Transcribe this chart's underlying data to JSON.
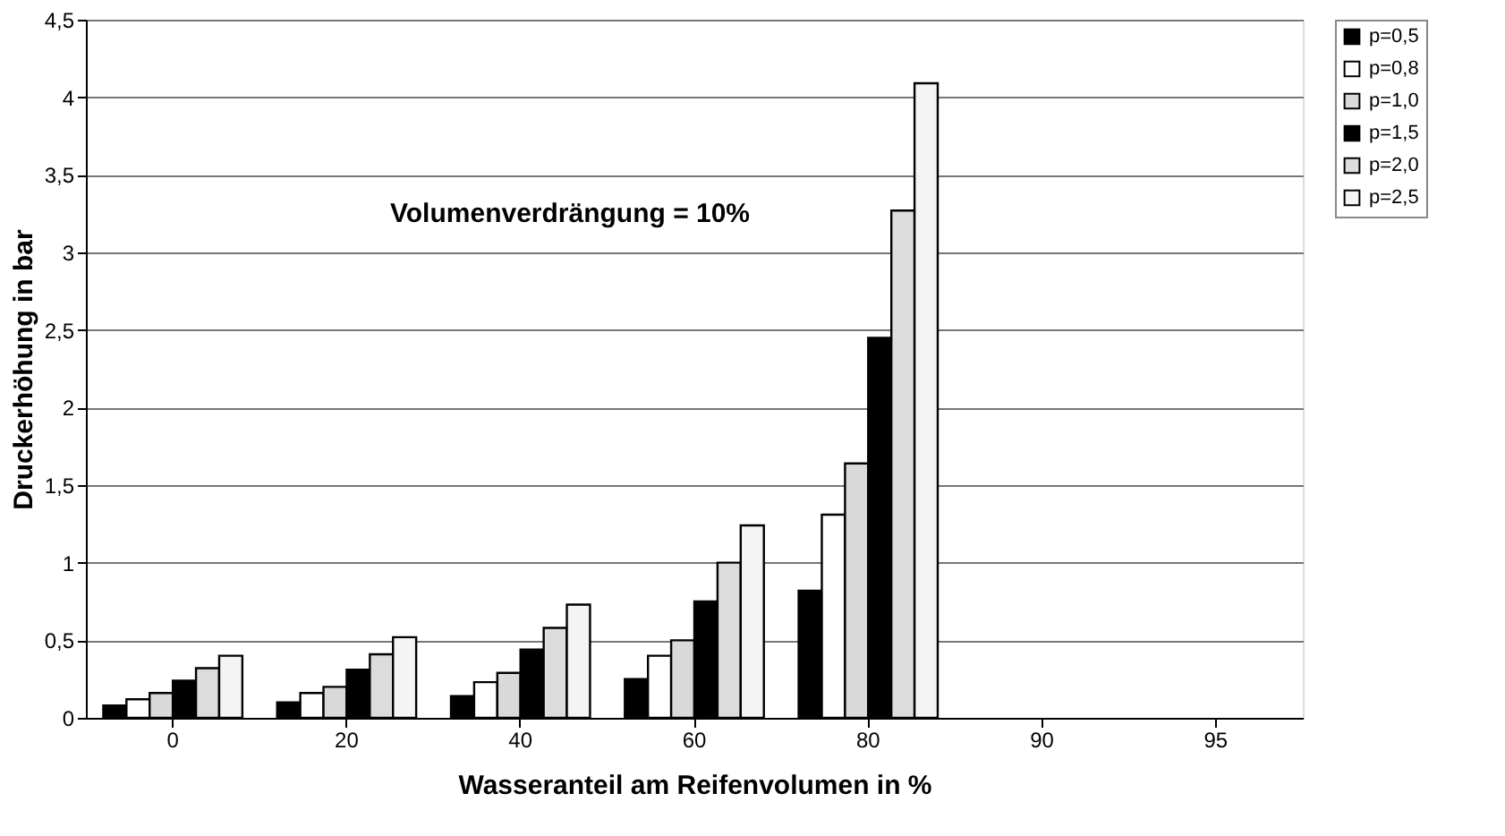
{
  "chart_data": {
    "type": "bar",
    "xlabel": "Wasseranteil am Reifenvolumen in %",
    "ylabel": "Druckerhöhung in bar",
    "categories": [
      "0",
      "20",
      "40",
      "60",
      "80",
      "90",
      "95"
    ],
    "series": [
      {
        "name": "p=0,5",
        "color": "#000000",
        "values": [
          0.08,
          0.1,
          0.14,
          0.25,
          0.82,
          null,
          null
        ]
      },
      {
        "name": "p=0,8",
        "color": "#ffffff",
        "values": [
          0.12,
          0.16,
          0.23,
          0.4,
          1.31,
          null,
          null
        ]
      },
      {
        "name": "p=1,0",
        "color": "#d9d9d9",
        "values": [
          0.16,
          0.2,
          0.29,
          0.5,
          1.64,
          null,
          null
        ]
      },
      {
        "name": "p=1,5",
        "color": "#000000",
        "values": [
          0.24,
          0.31,
          0.44,
          0.75,
          2.45,
          null,
          null
        ]
      },
      {
        "name": "p=2,0",
        "color": "#dcdcdc",
        "values": [
          0.32,
          0.41,
          0.58,
          1.0,
          3.27,
          null,
          null
        ]
      },
      {
        "name": "p=2,5",
        "color": "#f4f4f4",
        "values": [
          0.4,
          0.52,
          0.73,
          1.24,
          4.09,
          null,
          null
        ]
      }
    ],
    "ylim": [
      0,
      4.5
    ],
    "yticks": [
      {
        "value": 0,
        "label": "0"
      },
      {
        "value": 0.5,
        "label": "0,5"
      },
      {
        "value": 1,
        "label": "1"
      },
      {
        "value": 1.5,
        "label": "1,5"
      },
      {
        "value": 2,
        "label": "2"
      },
      {
        "value": 2.5,
        "label": "2,5"
      },
      {
        "value": 3,
        "label": "3"
      },
      {
        "value": 3.5,
        "label": "3,5"
      },
      {
        "value": 4,
        "label": "4"
      },
      {
        "value": 4.5,
        "label": "4,5"
      }
    ],
    "grid": "y",
    "legend": "right",
    "annotations": [
      "Volumenverdrängung = 10%"
    ]
  }
}
